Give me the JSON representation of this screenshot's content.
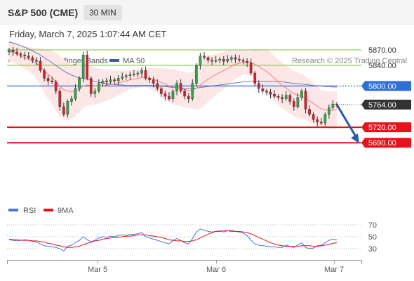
{
  "header": {
    "symbol": "S&P 500 (CME)",
    "interval": "30 MIN",
    "timestamp": "Friday, March 7, 2025 1:07:44 AM CET"
  },
  "legend": {
    "ma20": "MA 20 + Bollinger Bands",
    "ma50": "MA 50",
    "credit": "Research © 2025 Trading Central",
    "rsi": "RSI",
    "rsi_ma": "9MA"
  },
  "colors": {
    "ma20": "#f08080",
    "bollinger_fill": "#fde6e6",
    "ma50": "#3d5a99",
    "resistance": "#7cc242",
    "pivot": "#2f6fd6",
    "support": "#e8121c",
    "current_price": "#333333",
    "arrow": "#2b5aa6",
    "rsi": "#4f72d8",
    "rsi_ma": "#e8121c",
    "candle_up": "#2ea84a",
    "candle_down": "#d8202c"
  },
  "chart_data": [
    {
      "type": "line",
      "panel": "price",
      "x_tick_labels": [
        "Mar 5",
        "Mar 6",
        "Mar 7"
      ],
      "ylim": [
        5680,
        5900
      ],
      "levels": [
        {
          "label": "5870.00",
          "value": 5870,
          "kind": "resistance"
        },
        {
          "label": "5840.00",
          "value": 5840,
          "kind": "resistance"
        },
        {
          "label": "5800.00",
          "value": 5800,
          "kind": "pivot"
        },
        {
          "label": "5764.00",
          "value": 5764,
          "kind": "current"
        },
        {
          "label": "5720.00",
          "value": 5720,
          "kind": "support"
        },
        {
          "label": "5690.00",
          "value": 5690,
          "kind": "support"
        }
      ],
      "close": [
        5870,
        5866,
        5862,
        5860,
        5858,
        5855,
        5850,
        5848,
        5830,
        5815,
        5810,
        5808,
        5790,
        5760,
        5745,
        5770,
        5775,
        5795,
        5815,
        5860,
        5815,
        5785,
        5790,
        5805,
        5810,
        5808,
        5812,
        5810,
        5815,
        5818,
        5820,
        5822,
        5823,
        5825,
        5830,
        5815,
        5812,
        5805,
        5795,
        5785,
        5780,
        5775,
        5790,
        5805,
        5790,
        5780,
        5775,
        5805,
        5840,
        5858,
        5855,
        5850,
        5848,
        5850,
        5852,
        5848,
        5852,
        5855,
        5852,
        5850,
        5848,
        5845,
        5825,
        5805,
        5795,
        5790,
        5788,
        5784,
        5780,
        5778,
        5775,
        5782,
        5770,
        5760,
        5778,
        5790,
        5755,
        5745,
        5735,
        5730,
        5728,
        5745,
        5758,
        5765,
        5764
      ],
      "ma20": [
        5868,
        5865,
        5862,
        5858,
        5855,
        5852,
        5848,
        5844,
        5838,
        5830,
        5823,
        5816,
        5808,
        5799,
        5793,
        5790,
        5789,
        5790,
        5793,
        5800,
        5802,
        5801,
        5800,
        5800,
        5801,
        5802,
        5803,
        5804,
        5806,
        5808,
        5810,
        5812,
        5813,
        5815,
        5816,
        5816,
        5815,
        5813,
        5810,
        5807,
        5804,
        5800,
        5798,
        5797,
        5795,
        5793,
        5791,
        5792,
        5796,
        5802,
        5808,
        5813,
        5818,
        5822,
        5826,
        5830,
        5834,
        5838,
        5842,
        5844,
        5846,
        5846,
        5845,
        5842,
        5838,
        5833,
        5828,
        5822,
        5815,
        5808,
        5801,
        5796,
        5790,
        5785,
        5782,
        5780,
        5776,
        5771,
        5766,
        5761,
        5756,
        5754,
        5753,
        5753,
        5754
      ],
      "ma50": [
        5885,
        5883,
        5881,
        5878,
        5875,
        5872,
        5868,
        5864,
        5860,
        5855,
        5850,
        5845,
        5840,
        5834,
        5829,
        5825,
        5821,
        5818,
        5816,
        5815,
        5813,
        5811,
        5809,
        5807,
        5806,
        5805,
        5804,
        5803,
        5802,
        5802,
        5801,
        5801,
        5801,
        5801,
        5801,
        5801,
        5801,
        5801,
        5801,
        5800,
        5799,
        5798,
        5797,
        5797,
        5796,
        5795,
        5795,
        5795,
        5796,
        5797,
        5798,
        5799,
        5800,
        5801,
        5802,
        5803,
        5804,
        5805,
        5806,
        5807,
        5808,
        5809,
        5809,
        5809,
        5809,
        5809,
        5809,
        5809,
        5809,
        5808,
        5808,
        5807,
        5806,
        5805,
        5804,
        5804,
        5803,
        5802,
        5801,
        5800,
        5800,
        5799,
        5799,
        5798,
        5798
      ],
      "bb_width": [
        20,
        20,
        20,
        20,
        22,
        24,
        26,
        30,
        36,
        42,
        48,
        52,
        56,
        58,
        58,
        56,
        52,
        48,
        44,
        42,
        40,
        38,
        36,
        34,
        32,
        30,
        28,
        26,
        24,
        22,
        20,
        18,
        18,
        18,
        18,
        18,
        20,
        22,
        24,
        28,
        30,
        32,
        34,
        34,
        34,
        34,
        34,
        36,
        42,
        46,
        46,
        44,
        42,
        40,
        38,
        36,
        34,
        32,
        28,
        26,
        24,
        24,
        26,
        30,
        34,
        38,
        42,
        44,
        44,
        44,
        44,
        44,
        44,
        44,
        44,
        44,
        42,
        42,
        40,
        38,
        36,
        36,
        36,
        36,
        36
      ]
    },
    {
      "type": "line",
      "panel": "rsi",
      "ylim": [
        20,
        80
      ],
      "y_ticks": [
        30,
        50,
        70
      ],
      "series": [
        {
          "name": "RSI",
          "values": [
            45,
            44,
            43,
            44,
            45,
            44,
            42,
            41,
            38,
            35,
            34,
            33,
            32,
            30,
            26,
            34,
            36,
            40,
            44,
            50,
            45,
            42,
            44,
            48,
            50,
            49,
            51,
            50,
            52,
            53,
            52,
            54,
            54,
            55,
            57,
            50,
            48,
            46,
            44,
            42,
            40,
            38,
            44,
            47,
            44,
            40,
            38,
            47,
            58,
            63,
            61,
            59,
            58,
            59,
            60,
            58,
            60,
            61,
            59,
            58,
            56,
            52,
            44,
            38,
            36,
            35,
            34,
            33,
            33,
            32,
            32,
            36,
            34,
            32,
            36,
            40,
            32,
            30,
            31,
            35,
            36,
            40,
            44,
            46,
            45
          ]
        },
        {
          "name": "9MA",
          "values": [
            46,
            45,
            45,
            44,
            44,
            44,
            43,
            43,
            42,
            41,
            39,
            38,
            36,
            35,
            33,
            32,
            32,
            33,
            34,
            37,
            39,
            41,
            43,
            44,
            46,
            47,
            48,
            49,
            49,
            50,
            51,
            51,
            52,
            53,
            53,
            53,
            52,
            51,
            50,
            49,
            47,
            45,
            44,
            43,
            43,
            42,
            42,
            43,
            45,
            48,
            51,
            54,
            57,
            59,
            59,
            60,
            60,
            59,
            59,
            59,
            58,
            57,
            55,
            52,
            49,
            46,
            43,
            40,
            38,
            36,
            35,
            34,
            34,
            34,
            34,
            35,
            35,
            35,
            34,
            34,
            35,
            36,
            37,
            39,
            40
          ]
        }
      ]
    }
  ]
}
